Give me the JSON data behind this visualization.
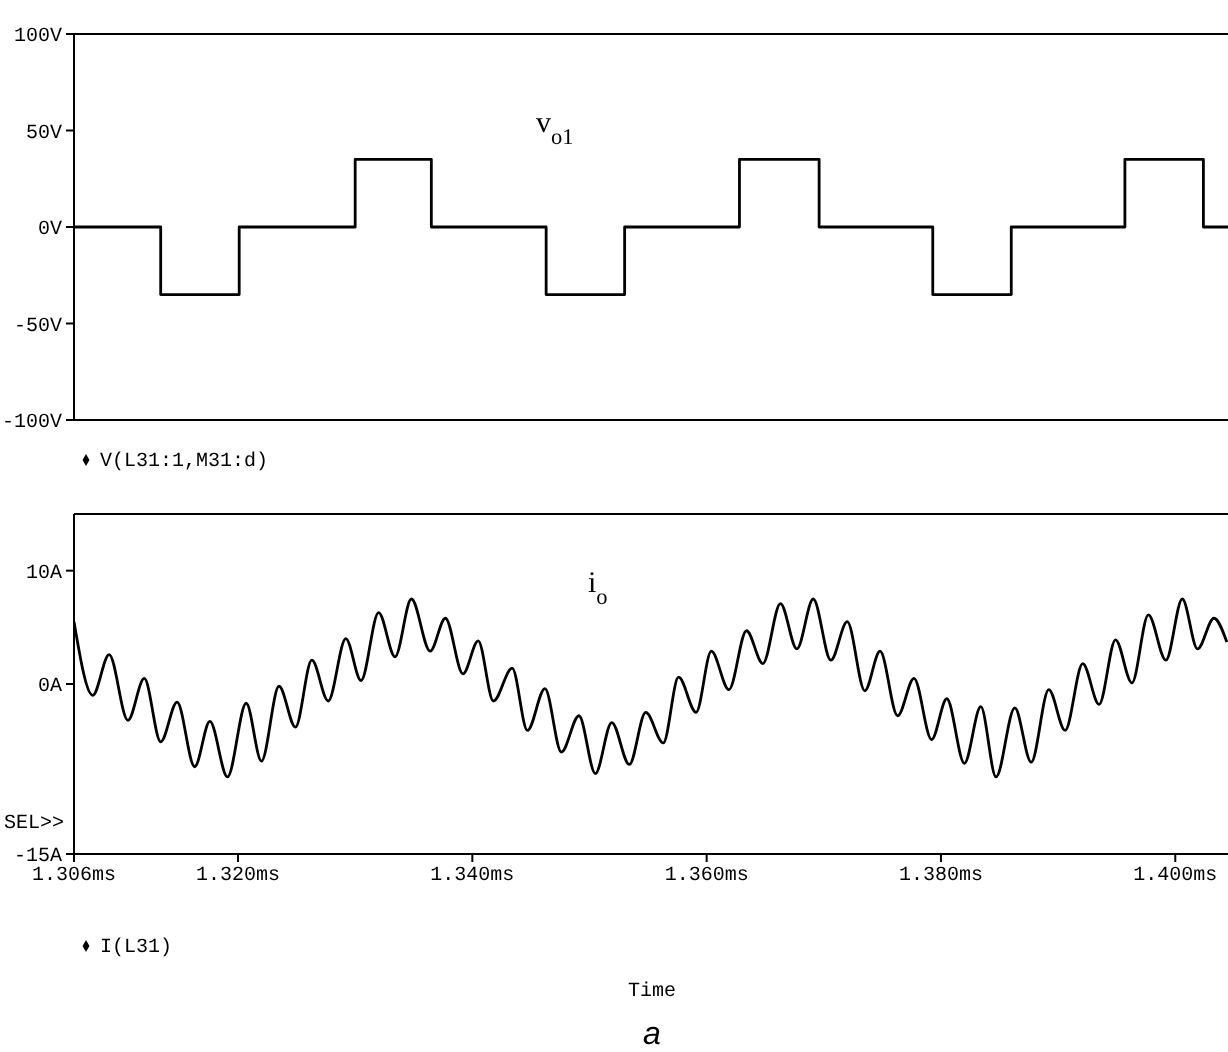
{
  "chart_data": [
    {
      "type": "step",
      "xlim": [
        1.306,
        1.4045
      ],
      "ylim": [
        -100,
        100
      ],
      "yticks": [
        {
          "value": 100,
          "label": "100V"
        },
        {
          "value": 50,
          "label": "50V"
        },
        {
          "value": 0,
          "label": "0V"
        },
        {
          "value": -50,
          "label": "-50V"
        },
        {
          "value": -100,
          "label": "-100V"
        }
      ],
      "tick_labels": "y",
      "legend": "bottom left",
      "annotations": [
        "v$_{o1}$"
      ],
      "series": [
        {
          "name": "V(L31:1,M31:d)",
          "color": "#000000",
          "x": [
            1.306,
            1.3134,
            1.3201,
            1.33,
            1.3365,
            1.3463,
            1.353,
            1.3628,
            1.3696,
            1.3793,
            1.386,
            1.3957,
            1.4024,
            1.4045
          ],
          "values": [
            0,
            -35,
            0,
            35,
            0,
            -35,
            0,
            35,
            0,
            -35,
            0,
            35,
            0,
            0
          ]
        }
      ]
    },
    {
      "type": "line",
      "xlim": [
        1.306,
        1.4045
      ],
      "xticks": [
        {
          "value": 1.306,
          "label": "1.306ms"
        },
        {
          "value": 1.32,
          "label": "1.320ms"
        },
        {
          "value": 1.34,
          "label": "1.340ms"
        },
        {
          "value": 1.36,
          "label": "1.360ms"
        },
        {
          "value": 1.38,
          "label": "1.380ms"
        },
        {
          "value": 1.4,
          "label": "1.400ms"
        }
      ],
      "ylim": [
        -15,
        15
      ],
      "yticks": [
        {
          "value": -15,
          "label": "-15A"
        },
        {
          "value": 0,
          "label": "0A"
        },
        {
          "value": 10,
          "label": "10A"
        }
      ],
      "xlabel": "Time",
      "legend": "bottom left",
      "annotations": [
        "i$_{o}$",
        "SEL>>",
        "a"
      ],
      "series": [
        {
          "name": "I(L31)",
          "color": "#000000",
          "x": [
            1.306,
            1.3076,
            1.309,
            1.3106,
            1.312,
            1.3134,
            1.3148,
            1.3163,
            1.3176,
            1.3191,
            1.3207,
            1.322,
            1.3235,
            1.3249,
            1.3263,
            1.3277,
            1.3292,
            1.3305,
            1.332,
            1.3334,
            1.3348,
            1.3364,
            1.3377,
            1.3392,
            1.3405,
            1.3418,
            1.3434,
            1.3447,
            1.3462,
            1.3476,
            1.3491,
            1.3505,
            1.3519,
            1.3534,
            1.3548,
            1.3563,
            1.3576,
            1.3591,
            1.3604,
            1.3619,
            1.3634,
            1.3648,
            1.3663,
            1.3677,
            1.3691,
            1.3706,
            1.372,
            1.3735,
            1.3748,
            1.3763,
            1.3777,
            1.3792,
            1.3805,
            1.382,
            1.3834,
            1.3847,
            1.3863,
            1.3877,
            1.3892,
            1.3906,
            1.3921,
            1.3935,
            1.3949,
            1.3963,
            1.3977,
            1.3992,
            1.4006,
            1.4019,
            1.4033,
            1.4044
          ],
          "values": [
            5.5,
            -1.0,
            2.6,
            -3.2,
            0.5,
            -5.1,
            -1.6,
            -7.3,
            -3.3,
            -8.2,
            -1.7,
            -6.8,
            -0.2,
            -3.8,
            2.1,
            -1.5,
            4.0,
            0.3,
            6.3,
            2.4,
            7.5,
            2.9,
            5.8,
            0.9,
            3.8,
            -1.5,
            1.4,
            -4.1,
            -0.4,
            -6.0,
            -2.8,
            -7.9,
            -3.4,
            -7.1,
            -2.5,
            -5.2,
            0.6,
            -2.5,
            2.9,
            -0.5,
            4.7,
            1.8,
            7.1,
            3.1,
            7.5,
            2.1,
            5.5,
            -0.6,
            2.9,
            -2.8,
            0.5,
            -4.9,
            -1.3,
            -7.0,
            -2.0,
            -8.2,
            -2.1,
            -6.9,
            -0.5,
            -4.1,
            1.8,
            -1.8,
            3.9,
            0.1,
            6.1,
            2.1,
            7.5,
            3.1,
            5.8,
            3.7
          ]
        }
      ]
    }
  ]
}
